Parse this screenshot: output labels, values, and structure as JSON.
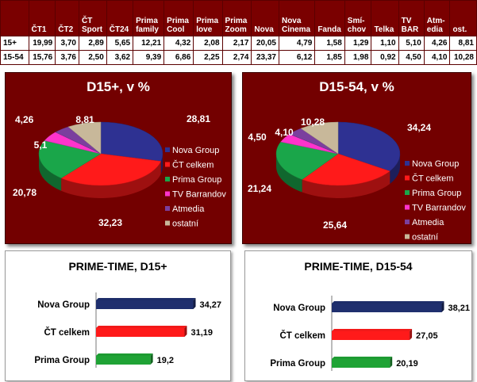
{
  "table": {
    "headers": [
      "",
      "ČT1",
      "ČT2",
      "ČT Sport",
      "ČT24",
      "Prima family",
      "Prima Cool",
      "Prima love",
      "Prima Zoom",
      "Nova",
      "Nova Cinema",
      "Fanda",
      "Smí-chov",
      "Telka",
      "TV BAR",
      "Atm-edia",
      "ost."
    ],
    "header_lines": [
      [
        ""
      ],
      [
        "ČT1"
      ],
      [
        "ČT2"
      ],
      [
        "ČT",
        "Sport"
      ],
      [
        "ČT24"
      ],
      [
        "Prima",
        "family"
      ],
      [
        "Prima",
        "Cool"
      ],
      [
        "Prima",
        "love"
      ],
      [
        "Prima",
        "Zoom"
      ],
      [
        "Nova"
      ],
      [
        "Nova",
        "Cinema"
      ],
      [
        "Fanda"
      ],
      [
        "Smí-",
        "chov"
      ],
      [
        "Telka"
      ],
      [
        "TV",
        "BAR"
      ],
      [
        "Atm-",
        "edia"
      ],
      [
        "ost."
      ]
    ],
    "rows": [
      [
        "15+",
        "19,99",
        "3,70",
        "2,89",
        "5,65",
        "12,21",
        "4,32",
        "2,08",
        "2,17",
        "20,05",
        "4,79",
        "1,58",
        "1,29",
        "1,10",
        "5,10",
        "4,26",
        "8,81"
      ],
      [
        "15-54",
        "15,76",
        "3,76",
        "2,50",
        "3,62",
        "9,39",
        "6,86",
        "2,25",
        "2,74",
        "23,37",
        "6,12",
        "1,85",
        "1,98",
        "0,92",
        "4,50",
        "4,10",
        "10,28"
      ]
    ]
  },
  "chart_data": [
    {
      "type": "pie",
      "title": "D15+, v %",
      "categories": [
        "Nova Group",
        "ČT celkem",
        "Prima Group",
        "TV Barrandov",
        "Atmedia",
        "ostatní"
      ],
      "values": [
        28.81,
        32.23,
        20.78,
        5.1,
        4.26,
        8.81
      ],
      "labels": [
        "28,81",
        "32,23",
        "20,78",
        "5,1",
        "4,26",
        "8,81"
      ],
      "colors": [
        "#2e3192",
        "#ff1a1a",
        "#1aa64a",
        "#ff33cc",
        "#7b3f9e",
        "#c8b89a"
      ],
      "legend": "right"
    },
    {
      "type": "pie",
      "title": "D15-54, v %",
      "categories": [
        "Nova Group",
        "ČT celkem",
        "Prima Group",
        "TV Barrandov",
        "Atmedia",
        "ostatní"
      ],
      "values": [
        34.24,
        25.64,
        21.24,
        4.5,
        4.1,
        10.28
      ],
      "labels": [
        "34,24",
        "25,64",
        "21,24",
        "4,50",
        "4,10",
        "10,28"
      ],
      "colors": [
        "#2e3192",
        "#ff1a1a",
        "#1aa64a",
        "#ff33cc",
        "#7b3f9e",
        "#c8b89a"
      ],
      "legend": "right"
    },
    {
      "type": "bar",
      "title": "PRIME-TIME, D15+",
      "categories": [
        "Nova Group",
        "ČT celkem",
        "Prima Group"
      ],
      "values": [
        34.27,
        31.19,
        19.2
      ],
      "labels": [
        "34,27",
        "31,19",
        "19,2"
      ],
      "colors": [
        "#1f2f6e",
        "#ff1a1a",
        "#1fa335"
      ],
      "xlim": [
        0,
        40
      ]
    },
    {
      "type": "bar",
      "title": "PRIME-TIME, D15-54",
      "categories": [
        "Nova Group",
        "ČT celkem",
        "Prima Group"
      ],
      "values": [
        38.21,
        27.05,
        20.19
      ],
      "labels": [
        "38,21",
        "27,05",
        "20,19"
      ],
      "colors": [
        "#1f2f6e",
        "#ff1a1a",
        "#1fa335"
      ],
      "xlim": [
        0,
        40
      ]
    }
  ]
}
